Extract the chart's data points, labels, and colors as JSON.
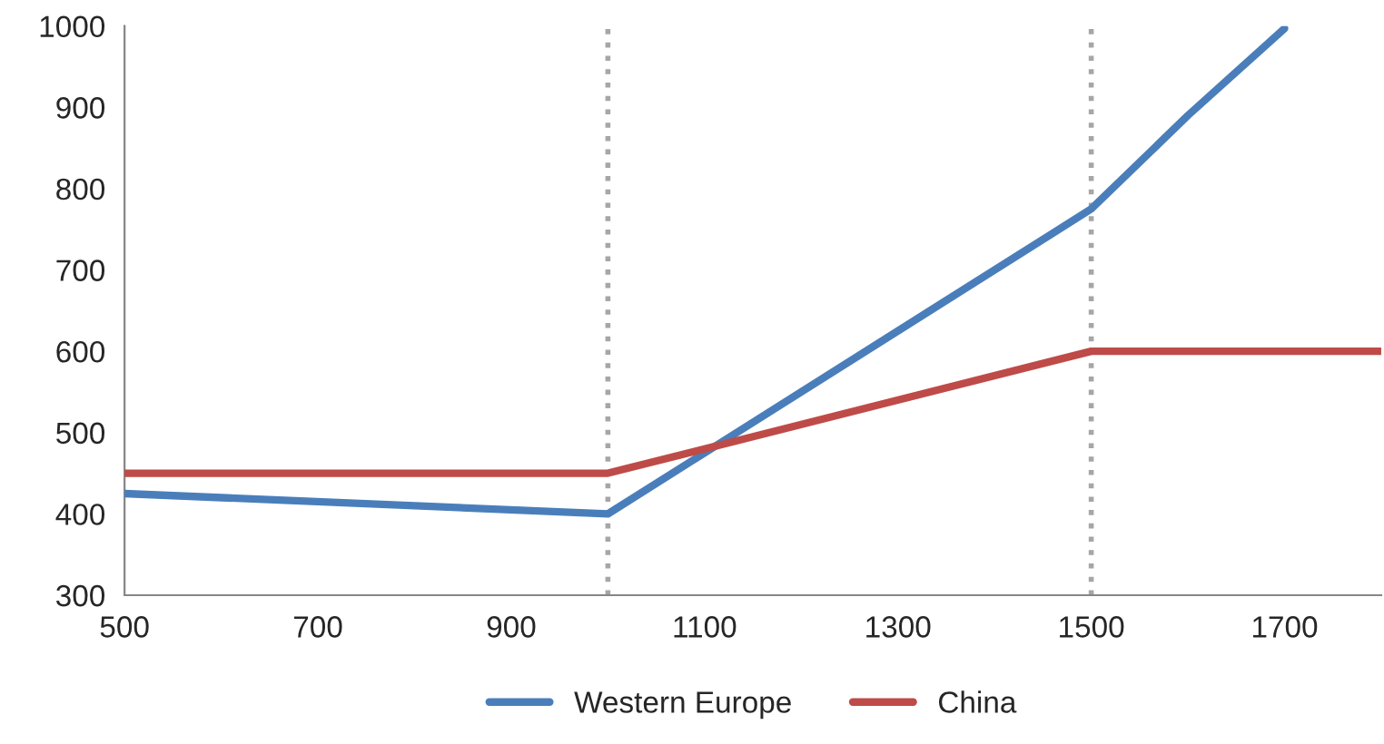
{
  "chart_data": {
    "type": "line",
    "x": [
      500,
      1000,
      1500,
      1600,
      1700
    ],
    "series": [
      {
        "name": "Western Europe",
        "color": "#4a7ebb",
        "values": [
          425,
          400,
          775,
          890,
          997
        ]
      },
      {
        "name": "China",
        "color": "#be4b48",
        "x": [
          500,
          1000,
          1500,
          1600,
          1700,
          1800
        ],
        "values": [
          450,
          450,
          600,
          600,
          600,
          600
        ]
      }
    ],
    "xlim": [
      500,
      1800
    ],
    "xticks": [
      500,
      700,
      900,
      1100,
      1300,
      1500,
      1700
    ],
    "ylim": [
      300,
      1000
    ],
    "yticks": [
      300,
      400,
      500,
      600,
      700,
      800,
      900,
      1000
    ],
    "ref_lines": [
      {
        "axis": "x",
        "value": 1000,
        "color": "#a6a6a6",
        "line_style": "dotted"
      },
      {
        "axis": "x",
        "value": 1500,
        "color": "#a6a6a6",
        "line_style": "dotted"
      }
    ],
    "grid": false,
    "legend": "bottom",
    "marker": "none",
    "line_style": "solid"
  }
}
